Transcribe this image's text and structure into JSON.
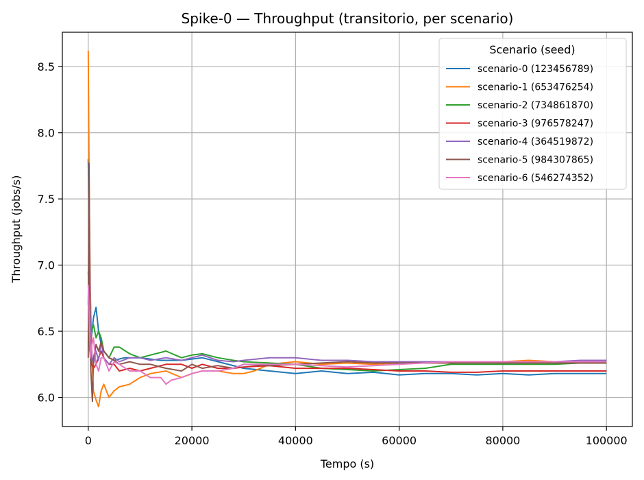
{
  "chart_data": {
    "type": "line",
    "title": "Spike-0 — Throughput (transitorio, per scenario)",
    "xlabel": "Tempo (s)",
    "ylabel": "Throughput (jobs/s)",
    "xlim": [
      -5000,
      105000
    ],
    "ylim": [
      5.78,
      8.76
    ],
    "xticks": [
      0,
      20000,
      40000,
      60000,
      80000,
      100000
    ],
    "xtick_labels": [
      "0",
      "20000",
      "40000",
      "60000",
      "80000",
      "100000"
    ],
    "yticks": [
      6.0,
      6.5,
      7.0,
      7.5,
      8.0,
      8.5
    ],
    "ytick_labels": [
      "6.0",
      "6.5",
      "7.0",
      "7.5",
      "8.0",
      "8.5"
    ],
    "grid": true,
    "legend": {
      "title": "Scenario (seed)",
      "position": "top-right"
    },
    "series": [
      {
        "name": "scenario-0 (123456789)",
        "color": "#1f77b4",
        "x": [
          0,
          300,
          600,
          1000,
          1500,
          2000,
          2500,
          3000,
          4000,
          5000,
          7000,
          10000,
          14000,
          18000,
          22000,
          26000,
          30000,
          35000,
          40000,
          45000,
          50000,
          55000,
          60000,
          65000,
          70000,
          75000,
          80000,
          85000,
          90000,
          95000,
          100000
        ],
        "y": [
          7.8,
          6.9,
          6.45,
          6.6,
          6.68,
          6.5,
          6.4,
          6.35,
          6.3,
          6.28,
          6.3,
          6.3,
          6.28,
          6.28,
          6.3,
          6.26,
          6.22,
          6.2,
          6.18,
          6.2,
          6.18,
          6.19,
          6.17,
          6.18,
          6.18,
          6.17,
          6.18,
          6.17,
          6.18,
          6.18,
          6.18
        ]
      },
      {
        "name": "scenario-1 (653476254)",
        "color": "#ff7f0e",
        "x": [
          0,
          200,
          400,
          700,
          1000,
          1500,
          2000,
          2500,
          3000,
          4000,
          5000,
          6000,
          8000,
          10000,
          12000,
          15000,
          18000,
          20000,
          22000,
          25000,
          28000,
          30000,
          32000,
          35000,
          40000,
          45000,
          50000,
          55000,
          60000,
          65000,
          70000,
          75000,
          80000,
          85000,
          90000,
          95000,
          100000
        ],
        "y": [
          8.62,
          7.5,
          6.8,
          6.3,
          6.05,
          5.98,
          5.93,
          6.05,
          6.1,
          6.0,
          6.05,
          6.08,
          6.1,
          6.15,
          6.18,
          6.2,
          6.15,
          6.18,
          6.2,
          6.2,
          6.18,
          6.18,
          6.2,
          6.25,
          6.27,
          6.25,
          6.26,
          6.25,
          6.26,
          6.26,
          6.26,
          6.27,
          6.27,
          6.28,
          6.27,
          6.26,
          6.26
        ]
      },
      {
        "name": "scenario-2 (734861870)",
        "color": "#2ca02c",
        "x": [
          0,
          300,
          600,
          1000,
          1500,
          2000,
          2500,
          3000,
          4000,
          5000,
          6000,
          8000,
          10000,
          12000,
          15000,
          18000,
          20000,
          22000,
          25000,
          28000,
          30000,
          35000,
          40000,
          45000,
          50000,
          55000,
          60000,
          65000,
          70000,
          75000,
          80000,
          85000,
          90000,
          95000,
          100000
        ],
        "y": [
          6.95,
          6.6,
          6.5,
          6.55,
          6.45,
          6.5,
          6.45,
          6.35,
          6.3,
          6.38,
          6.38,
          6.33,
          6.3,
          6.32,
          6.35,
          6.3,
          6.32,
          6.33,
          6.3,
          6.28,
          6.27,
          6.26,
          6.25,
          6.22,
          6.21,
          6.2,
          6.21,
          6.22,
          6.25,
          6.25,
          6.25,
          6.25,
          6.25,
          6.26,
          6.26
        ]
      },
      {
        "name": "scenario-3 (976578247)",
        "color": "#d62728",
        "x": [
          0,
          300,
          600,
          1000,
          1500,
          2000,
          2500,
          3000,
          4000,
          5000,
          6000,
          8000,
          10000,
          12000,
          15000,
          18000,
          20000,
          22000,
          25000,
          28000,
          30000,
          35000,
          40000,
          45000,
          50000,
          55000,
          60000,
          65000,
          70000,
          75000,
          80000,
          85000,
          90000,
          95000,
          100000
        ],
        "y": [
          6.5,
          6.35,
          6.25,
          6.22,
          6.25,
          6.3,
          6.35,
          6.3,
          6.25,
          6.25,
          6.2,
          6.22,
          6.2,
          6.22,
          6.25,
          6.25,
          6.22,
          6.25,
          6.22,
          6.22,
          6.23,
          6.24,
          6.22,
          6.22,
          6.22,
          6.21,
          6.2,
          6.2,
          6.19,
          6.19,
          6.2,
          6.2,
          6.2,
          6.2,
          6.2
        ]
      },
      {
        "name": "scenario-4 (364519872)",
        "color": "#9467bd",
        "x": [
          0,
          200,
          400,
          700,
          1000,
          1500,
          2000,
          2500,
          3000,
          4000,
          5000,
          6000,
          8000,
          10000,
          12000,
          15000,
          18000,
          20000,
          22000,
          25000,
          28000,
          30000,
          35000,
          40000,
          45000,
          50000,
          55000,
          60000,
          65000,
          70000,
          75000,
          80000,
          85000,
          90000,
          95000,
          100000
        ],
        "y": [
          6.7,
          7.5,
          6.6,
          6.3,
          6.25,
          6.35,
          6.28,
          6.42,
          6.3,
          6.25,
          6.3,
          6.27,
          6.3,
          6.3,
          6.28,
          6.3,
          6.28,
          6.3,
          6.32,
          6.28,
          6.27,
          6.28,
          6.3,
          6.3,
          6.28,
          6.28,
          6.27,
          6.27,
          6.27,
          6.27,
          6.27,
          6.27,
          6.27,
          6.27,
          6.28,
          6.28
        ]
      },
      {
        "name": "scenario-5 (984307865)",
        "color": "#8c564b",
        "x": [
          0,
          150,
          300,
          500,
          800,
          1000,
          1300,
          1500,
          2000,
          2500,
          3000,
          4000,
          5000,
          6000,
          8000,
          10000,
          12000,
          15000,
          18000,
          20000,
          22000,
          25000,
          28000,
          30000,
          35000,
          40000,
          45000,
          50000,
          55000,
          60000,
          65000,
          70000,
          75000,
          80000,
          85000,
          90000,
          95000,
          100000
        ],
        "y": [
          6.3,
          7.77,
          6.5,
          6.2,
          5.97,
          6.3,
          6.35,
          6.4,
          6.35,
          6.42,
          6.35,
          6.3,
          6.28,
          6.25,
          6.27,
          6.25,
          6.25,
          6.22,
          6.2,
          6.25,
          6.22,
          6.24,
          6.22,
          6.25,
          6.24,
          6.25,
          6.26,
          6.27,
          6.26,
          6.26,
          6.26,
          6.26,
          6.26,
          6.26,
          6.26,
          6.26,
          6.26,
          6.26
        ]
      },
      {
        "name": "scenario-6 (546274352)",
        "color": "#e377c2",
        "x": [
          0,
          200,
          400,
          700,
          1000,
          1500,
          2000,
          2500,
          3000,
          4000,
          5000,
          6000,
          8000,
          10000,
          12000,
          14000,
          15000,
          16000,
          18000,
          20000,
          22000,
          25000,
          28000,
          30000,
          35000,
          40000,
          45000,
          50000,
          55000,
          60000,
          65000,
          70000,
          75000,
          80000,
          85000,
          90000,
          95000,
          100000
        ],
        "y": [
          6.85,
          6.6,
          6.3,
          6.4,
          6.45,
          6.25,
          6.2,
          6.3,
          6.3,
          6.2,
          6.27,
          6.25,
          6.2,
          6.2,
          6.15,
          6.15,
          6.1,
          6.13,
          6.15,
          6.18,
          6.2,
          6.2,
          6.22,
          6.25,
          6.25,
          6.25,
          6.24,
          6.23,
          6.24,
          6.25,
          6.26,
          6.27,
          6.27,
          6.27,
          6.27,
          6.27,
          6.27,
          6.27
        ]
      }
    ]
  }
}
